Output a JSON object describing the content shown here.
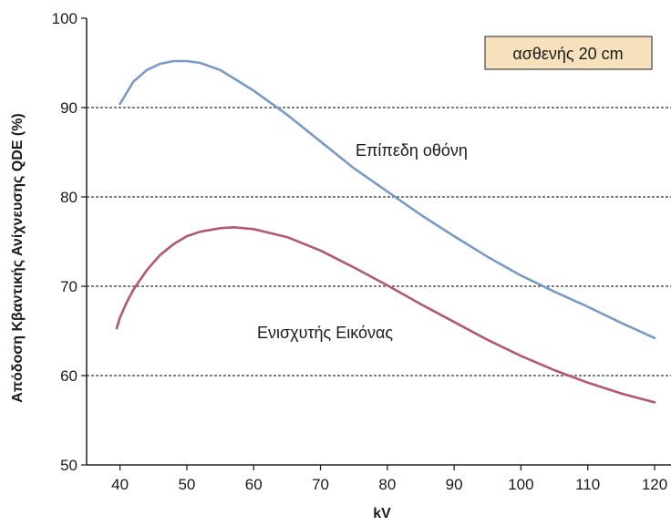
{
  "chart_data": {
    "type": "line",
    "xlabel": "kV",
    "ylabel": "Απόδοση Κβαντικής Ανίχνευσης QDE (%)",
    "xlim": [
      35,
      123
    ],
    "ylim": [
      50,
      100
    ],
    "xticks": [
      40,
      50,
      60,
      70,
      80,
      90,
      100,
      110,
      120
    ],
    "yticks": [
      50,
      60,
      70,
      80,
      90,
      100
    ],
    "grid": "horizontal dashed at 60, 70, 80, 90",
    "annotation": "ασθενής 20 cm",
    "series": [
      {
        "name": "Επίπεδη οθόνη",
        "color": "#7a9ac4",
        "x": [
          40,
          42,
          44,
          46,
          48,
          50,
          52,
          55,
          60,
          65,
          70,
          75,
          80,
          85,
          90,
          95,
          100,
          105,
          110,
          115,
          120
        ],
        "y": [
          90.4,
          92.9,
          94.2,
          94.9,
          95.2,
          95.2,
          95.0,
          94.2,
          91.9,
          89.2,
          86.2,
          83.2,
          80.6,
          78.0,
          75.6,
          73.3,
          71.2,
          69.4,
          67.7,
          65.9,
          64.2
        ]
      },
      {
        "name": "Ενισχυτής Εικόνας",
        "color": "#b05a6e",
        "x": [
          39.5,
          40,
          41,
          42,
          44,
          46,
          48,
          50,
          52,
          55,
          57,
          60,
          65,
          70,
          75,
          80,
          85,
          90,
          95,
          100,
          105,
          110,
          115,
          120
        ],
        "y": [
          65.3,
          66.5,
          68.2,
          69.6,
          71.8,
          73.5,
          74.7,
          75.6,
          76.1,
          76.5,
          76.6,
          76.4,
          75.5,
          74.0,
          72.1,
          70.1,
          68.0,
          66.0,
          64.0,
          62.2,
          60.6,
          59.2,
          58.0,
          57.0
        ]
      }
    ]
  }
}
